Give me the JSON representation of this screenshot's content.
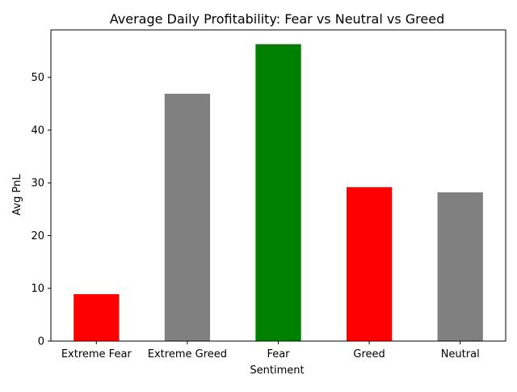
{
  "chart_data": {
    "type": "bar",
    "title": "Average Daily Profitability: Fear vs Neutral vs Greed",
    "xlabel": "Sentiment",
    "ylabel": "Avg PnL",
    "categories": [
      "Extreme Fear",
      "Extreme Greed",
      "Fear",
      "Greed",
      "Neutral"
    ],
    "values": [
      8.9,
      46.9,
      56.3,
      29.2,
      28.2
    ],
    "colors": [
      "#ff0000",
      "#808080",
      "#008000",
      "#ff0000",
      "#808080"
    ],
    "ylim": [
      0,
      59
    ],
    "yticks": [
      0,
      10,
      20,
      30,
      40,
      50
    ],
    "grid": false,
    "legend": "none"
  }
}
